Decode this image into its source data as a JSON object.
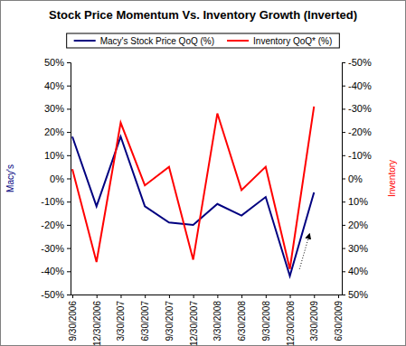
{
  "chart_data": {
    "type": "line",
    "title": "Stock Price Momentum Vs. Inventory Growth (Inverted)",
    "y_label": "Macy's",
    "y2_label": "Inventory",
    "categories": [
      "9/30/2006",
      "12/30/2006",
      "3/30/2007",
      "6/30/2007",
      "9/30/2007",
      "12/30/2007",
      "3/30/2008",
      "6/30/2008",
      "9/30/2008",
      "12/30/2008",
      "3/30/2009",
      "6/30/2009"
    ],
    "series": [
      {
        "name": "Macy's Stock Price QoQ (%)",
        "color": "#000080",
        "line_style": "solid",
        "values": [
          18,
          -12,
          18,
          -12,
          -19,
          -20,
          -11,
          -16,
          -8,
          -42,
          -6,
          null
        ]
      },
      {
        "name": "Inventory QoQ* (%)",
        "color": "#ff0000",
        "line_style": "solid",
        "axis": "y2",
        "values": [
          -4,
          36,
          -24,
          3,
          -5,
          35,
          -28,
          5,
          -5,
          39,
          -31,
          null
        ]
      }
    ],
    "ylim": [
      -50,
      50
    ],
    "yticks": [
      {
        "value": -50,
        "label": "-50%"
      },
      {
        "value": -40,
        "label": "-40%"
      },
      {
        "value": -30,
        "label": "-30%"
      },
      {
        "value": -20,
        "label": "-20%"
      },
      {
        "value": -10,
        "label": "-10%"
      },
      {
        "value": 0,
        "label": "0%"
      },
      {
        "value": 10,
        "label": "10%"
      },
      {
        "value": 20,
        "label": "20%"
      },
      {
        "value": 30,
        "label": "30%"
      },
      {
        "value": 40,
        "label": "40%"
      },
      {
        "value": 50,
        "label": "50%"
      }
    ],
    "y2lim": [
      50,
      -50
    ],
    "y2ticks": [
      {
        "value": -50,
        "label": "-50%"
      },
      {
        "value": -40,
        "label": "-40%"
      },
      {
        "value": -30,
        "label": "-30%"
      },
      {
        "value": -20,
        "label": "-20%"
      },
      {
        "value": -10,
        "label": "-10%"
      },
      {
        "value": 0,
        "label": "0%"
      },
      {
        "value": 10,
        "label": "10%"
      },
      {
        "value": 20,
        "label": "20%"
      },
      {
        "value": 30,
        "label": "30%"
      },
      {
        "value": 40,
        "label": "40%"
      },
      {
        "value": 50,
        "label": "50%"
      }
    ],
    "grid": false,
    "legend": "top"
  }
}
